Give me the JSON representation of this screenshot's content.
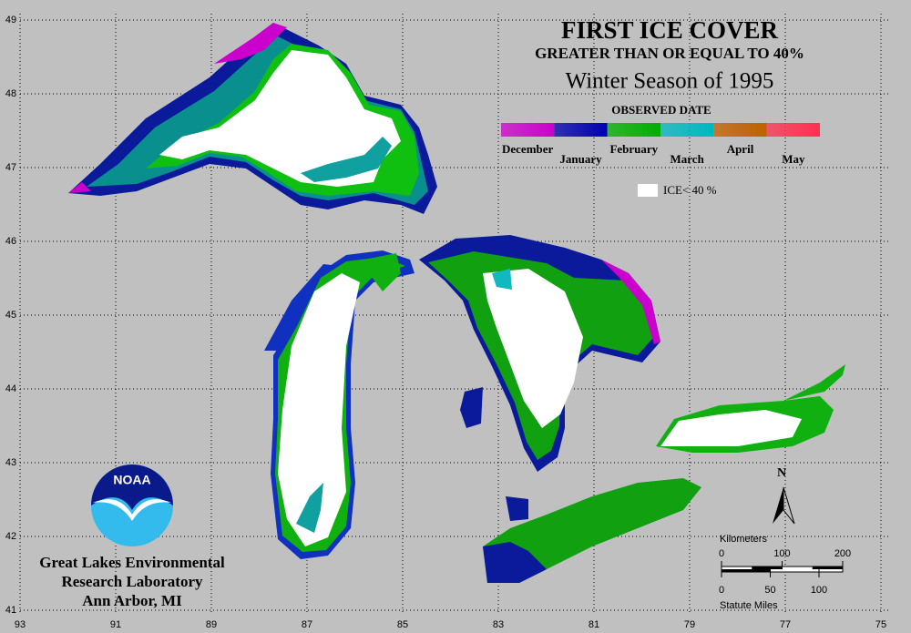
{
  "header": {
    "title": "FIRST ICE COVER",
    "subtitle": "GREATER THAN OR EQUAL TO 40%",
    "season": "Winter Season of 1995"
  },
  "legend": {
    "title": "OBSERVED DATE",
    "months": [
      {
        "label": "December",
        "color": "#cc00cc"
      },
      {
        "label": "January",
        "color": "#0000b0"
      },
      {
        "label": "February",
        "color": "#00b000"
      },
      {
        "label": "March",
        "color": "#00b8c0"
      },
      {
        "label": "April",
        "color": "#c06000"
      },
      {
        "label": "May",
        "color": "#ff3050"
      }
    ],
    "ice_note": "ICE< 40 %"
  },
  "grid": {
    "latitudes": [
      49,
      48,
      47,
      46,
      45,
      44,
      43,
      42,
      41
    ],
    "longitudes": [
      93,
      91,
      89,
      87,
      85,
      83,
      81,
      79,
      77,
      75
    ]
  },
  "scale": {
    "km_title": "Kilometers",
    "km_ticks": [
      0,
      100,
      200
    ],
    "mile_ticks": [
      0,
      50,
      100
    ],
    "mile_title": "Statute Miles"
  },
  "north": "N",
  "logo": "NOAA",
  "credit": [
    "Great Lakes Environmental",
    "Research Laboratory",
    "Ann Arbor, MI"
  ]
}
